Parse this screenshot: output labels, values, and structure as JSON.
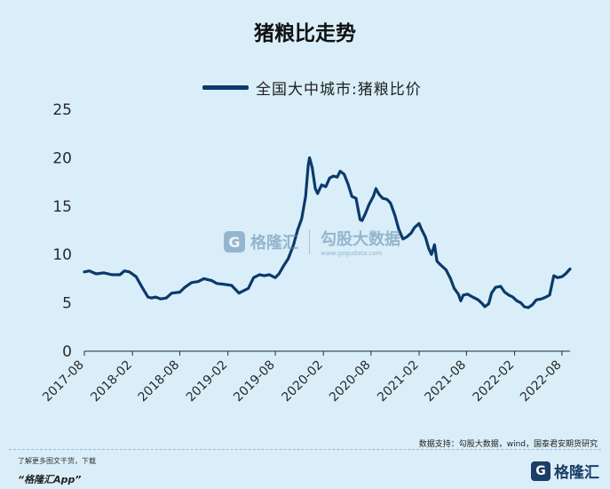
{
  "header": {
    "title": "猪粮比走势"
  },
  "chart_data": {
    "type": "line",
    "title": "猪粮比走势",
    "xlabel": "",
    "ylabel": "",
    "ylim": [
      0,
      25
    ],
    "yticks": [
      0,
      5,
      10,
      15,
      20,
      25
    ],
    "xtick_labels": [
      "2017-08",
      "2018-02",
      "2018-08",
      "2019-02",
      "2019-08",
      "2020-02",
      "2020-08",
      "2021-02",
      "2021-08",
      "2022-02",
      "2022-08"
    ],
    "grid": false,
    "legend_position": "top",
    "x_start": "2017-08",
    "x_end": "2022-09",
    "series": [
      {
        "name": "全国大中城市:猪粮比价",
        "color": "#0b3a6b",
        "points": [
          [
            "2017-08-01",
            8.2
          ],
          [
            "2017-08-20",
            8.3
          ],
          [
            "2017-09-15",
            8.0
          ],
          [
            "2017-10-15",
            8.1
          ],
          [
            "2017-11-15",
            7.9
          ],
          [
            "2017-12-15",
            7.9
          ],
          [
            "2018-01-01",
            8.3
          ],
          [
            "2018-01-20",
            8.2
          ],
          [
            "2018-02-15",
            7.7
          ],
          [
            "2018-03-10",
            6.6
          ],
          [
            "2018-04-01",
            5.6
          ],
          [
            "2018-04-15",
            5.5
          ],
          [
            "2018-05-01",
            5.6
          ],
          [
            "2018-05-20",
            5.4
          ],
          [
            "2018-06-10",
            5.5
          ],
          [
            "2018-07-01",
            6.0
          ],
          [
            "2018-08-01",
            6.1
          ],
          [
            "2018-08-20",
            6.6
          ],
          [
            "2018-09-15",
            7.1
          ],
          [
            "2018-10-10",
            7.2
          ],
          [
            "2018-11-01",
            7.5
          ],
          [
            "2018-12-01",
            7.3
          ],
          [
            "2018-12-20",
            7.0
          ],
          [
            "2019-01-20",
            6.9
          ],
          [
            "2019-02-15",
            6.8
          ],
          [
            "2019-03-01",
            6.4
          ],
          [
            "2019-03-15",
            6.0
          ],
          [
            "2019-04-05",
            6.3
          ],
          [
            "2019-04-20",
            6.5
          ],
          [
            "2019-05-10",
            7.6
          ],
          [
            "2019-06-01",
            7.9
          ],
          [
            "2019-06-20",
            7.8
          ],
          [
            "2019-07-10",
            7.9
          ],
          [
            "2019-08-01",
            7.6
          ],
          [
            "2019-08-15",
            8.0
          ],
          [
            "2019-09-01",
            8.8
          ],
          [
            "2019-09-20",
            9.6
          ],
          [
            "2019-10-10",
            11.0
          ],
          [
            "2019-10-25",
            12.5
          ],
          [
            "2019-11-10",
            13.7
          ],
          [
            "2019-11-25",
            16.0
          ],
          [
            "2019-12-05",
            19.2
          ],
          [
            "2019-12-10",
            20.0
          ],
          [
            "2019-12-20",
            19.0
          ],
          [
            "2020-01-01",
            16.8
          ],
          [
            "2020-01-10",
            16.3
          ],
          [
            "2020-01-25",
            17.2
          ],
          [
            "2020-02-10",
            17.0
          ],
          [
            "2020-02-25",
            17.9
          ],
          [
            "2020-03-10",
            18.1
          ],
          [
            "2020-03-25",
            18.0
          ],
          [
            "2020-04-05",
            18.6
          ],
          [
            "2020-04-20",
            18.3
          ],
          [
            "2020-05-05",
            17.3
          ],
          [
            "2020-05-20",
            16.0
          ],
          [
            "2020-06-05",
            15.8
          ],
          [
            "2020-06-20",
            13.6
          ],
          [
            "2020-06-28",
            13.5
          ],
          [
            "2020-07-10",
            14.2
          ],
          [
            "2020-07-25",
            15.2
          ],
          [
            "2020-08-10",
            16.0
          ],
          [
            "2020-08-20",
            16.8
          ],
          [
            "2020-09-01",
            16.2
          ],
          [
            "2020-09-15",
            15.8
          ],
          [
            "2020-10-01",
            15.7
          ],
          [
            "2020-10-15",
            15.3
          ],
          [
            "2020-11-01",
            14.0
          ],
          [
            "2020-11-15",
            12.6
          ],
          [
            "2020-12-01",
            11.6
          ],
          [
            "2020-12-15",
            11.8
          ],
          [
            "2021-01-01",
            12.2
          ],
          [
            "2021-01-15",
            12.8
          ],
          [
            "2021-02-01",
            13.2
          ],
          [
            "2021-02-10",
            12.6
          ],
          [
            "2021-02-25",
            11.8
          ],
          [
            "2021-03-10",
            10.6
          ],
          [
            "2021-03-20",
            10.0
          ],
          [
            "2021-04-01",
            11.0
          ],
          [
            "2021-04-10",
            9.3
          ],
          [
            "2021-04-25",
            8.9
          ],
          [
            "2021-05-15",
            8.4
          ],
          [
            "2021-06-01",
            7.5
          ],
          [
            "2021-06-15",
            6.5
          ],
          [
            "2021-07-01",
            5.9
          ],
          [
            "2021-07-10",
            5.2
          ],
          [
            "2021-07-20",
            5.8
          ],
          [
            "2021-08-05",
            5.9
          ],
          [
            "2021-08-25",
            5.6
          ],
          [
            "2021-09-15",
            5.3
          ],
          [
            "2021-10-01",
            4.9
          ],
          [
            "2021-10-10",
            4.6
          ],
          [
            "2021-10-25",
            4.9
          ],
          [
            "2021-11-05",
            6.0
          ],
          [
            "2021-11-20",
            6.6
          ],
          [
            "2021-12-10",
            6.7
          ],
          [
            "2021-12-25",
            6.1
          ],
          [
            "2022-01-10",
            5.8
          ],
          [
            "2022-01-25",
            5.6
          ],
          [
            "2022-02-10",
            5.2
          ],
          [
            "2022-02-25",
            5.0
          ],
          [
            "2022-03-10",
            4.6
          ],
          [
            "2022-03-25",
            4.5
          ],
          [
            "2022-04-10",
            4.8
          ],
          [
            "2022-04-25",
            5.3
          ],
          [
            "2022-05-15",
            5.4
          ],
          [
            "2022-06-01",
            5.6
          ],
          [
            "2022-06-15",
            5.8
          ],
          [
            "2022-07-01",
            7.8
          ],
          [
            "2022-07-15",
            7.6
          ],
          [
            "2022-08-01",
            7.7
          ],
          [
            "2022-08-15",
            8.0
          ],
          [
            "2022-09-01",
            8.5
          ]
        ]
      }
    ]
  },
  "watermark": {
    "logo_glyph": "G",
    "brand": "格隆汇",
    "right_main": "勾股大数据",
    "right_sub": "www.gogudata.com"
  },
  "source": "数据支持：勾股大数据，wind，国泰君安期货研究",
  "footer": {
    "line1": "了解更多图文干货，下载",
    "line2": "“格隆汇App”",
    "logo_glyph": "G",
    "logo_text": "格隆汇"
  },
  "colors": {
    "background": "#d9eef8",
    "line": "#0b3a6b",
    "axis": "#2a2a2a"
  }
}
